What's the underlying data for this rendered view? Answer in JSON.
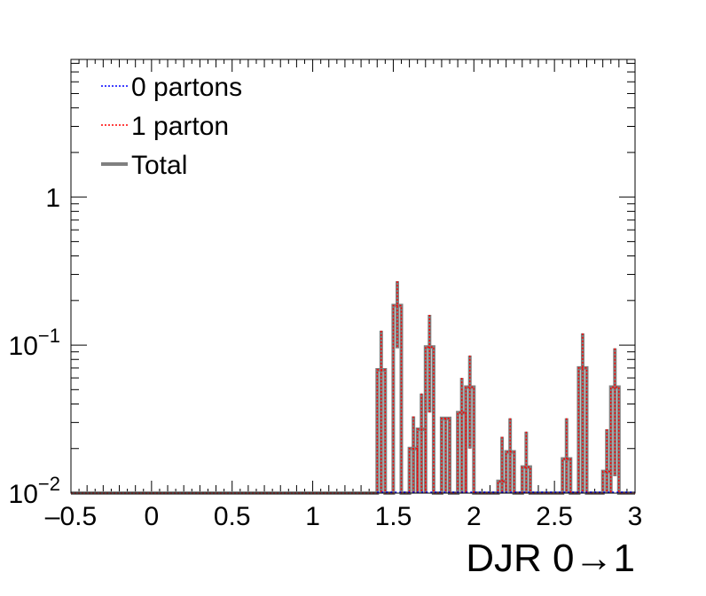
{
  "chart_data": {
    "type": "histogram",
    "xlabel": "DJR 0→1",
    "ylabel": "",
    "xlim": [
      -0.5,
      3
    ],
    "ylim": [
      0.01,
      8.5
    ],
    "yscale": "log",
    "x_ticks": [
      -0.5,
      0,
      0.5,
      1,
      1.5,
      2,
      2.5,
      3
    ],
    "x_tick_labels": [
      "–0.5",
      "0",
      "0.5",
      "1",
      "1.5",
      "2",
      "2.5",
      "3"
    ],
    "y_ticks": [
      {
        "value": 1,
        "label": "1"
      },
      {
        "value": 0.1,
        "base": "10",
        "exp": "−1"
      },
      {
        "value": 0.01,
        "base": "10",
        "exp": "−2"
      }
    ],
    "legend_position": "top-left",
    "legend": [
      {
        "label": "0 partons",
        "color": "#0000ff",
        "style": "dotted"
      },
      {
        "label": "1 parton",
        "color": "#ff0000",
        "style": "dotted"
      },
      {
        "label": "Total",
        "color": "#808080",
        "style": "solid"
      }
    ],
    "bin_edges": [
      1.4,
      1.45,
      1.5,
      1.55,
      1.6,
      1.65,
      1.7,
      1.75,
      1.8,
      1.85,
      1.9,
      1.95,
      2.0,
      2.05,
      2.1,
      2.15,
      2.2,
      2.25,
      2.3,
      2.35,
      2.4,
      2.45,
      2.5,
      2.55,
      2.6,
      2.65,
      2.7,
      2.75,
      2.8,
      2.85,
      2.9,
      2.95,
      3.0
    ],
    "series": [
      {
        "name": "0 partons",
        "color": "#0000ff",
        "values": []
      },
      {
        "name": "1 parton",
        "color": "#ff0000",
        "values": [
          0.068,
          0.0,
          0.185,
          0.02,
          0.027,
          0.097,
          0.032,
          0.0,
          0.035,
          0.052,
          0.0,
          0.012,
          0.019,
          0.015,
          0.0,
          0.0,
          0.017,
          0.07,
          0.0,
          0.014,
          0.052,
          0.0
        ],
        "errors_high": [
          0.125,
          0.0,
          0.27,
          0.033,
          0.047,
          0.16,
          0.032,
          0.0,
          0.06,
          0.085,
          0.0,
          0.024,
          0.032,
          0.026,
          0.0,
          0.0,
          0.032,
          0.12,
          0.0,
          0.027,
          0.095,
          0.0
        ],
        "errors_low": [
          0.01,
          0.0,
          0.095,
          0.01,
          0.01,
          0.035,
          0.01,
          0.0,
          0.01,
          0.02,
          0.0,
          0.01,
          0.01,
          0.01,
          0.0,
          0.0,
          0.01,
          0.01,
          0.0,
          0.01,
          0.013,
          0.0
        ],
        "bins_x0": [
          1.4,
          1.45,
          1.5,
          1.6,
          1.65,
          1.7,
          1.8,
          1.85,
          1.9,
          1.95,
          2.05,
          2.15,
          2.2,
          2.3,
          2.35,
          2.45,
          2.55,
          2.65,
          2.75,
          2.8,
          2.85,
          2.95
        ]
      },
      {
        "name": "Total",
        "color": "#808080",
        "same_as": "1 parton"
      }
    ]
  }
}
